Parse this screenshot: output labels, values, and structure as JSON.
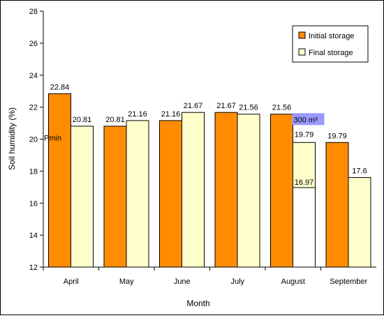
{
  "chart_data": {
    "type": "bar",
    "xlabel": "Month",
    "ylabel": "Soil humidity (%)",
    "ylim": [
      12,
      28
    ],
    "yticks": [
      12,
      14,
      16,
      18,
      20,
      22,
      24,
      26,
      28
    ],
    "grid": false,
    "legend_placement": "top-right",
    "categories": [
      "April",
      "May",
      "June",
      "July",
      "August",
      "September"
    ],
    "series": [
      {
        "name": "Initial storage",
        "color": "#ff8c00",
        "values": [
          22.84,
          20.81,
          21.16,
          21.67,
          21.56,
          19.79
        ],
        "labels": [
          "22.84",
          "20.81",
          "21.16",
          "21.67",
          "21.56",
          "19.79"
        ]
      },
      {
        "name": "Final storage",
        "color": "#ffffcc",
        "values": [
          20.81,
          21.16,
          21.67,
          21.56,
          19.79,
          17.6
        ],
        "labels": [
          "20.81",
          "21.16",
          "21.67",
          "21.56",
          "19.79",
          "17.6"
        ]
      }
    ],
    "annotations": {
      "pmin_label": "Pmin",
      "pmin_value": 20,
      "volume_label": "300 m³",
      "volume_bg": "#9999ff",
      "august_inner_value": 16.97,
      "august_inner_label": "16.97"
    }
  }
}
